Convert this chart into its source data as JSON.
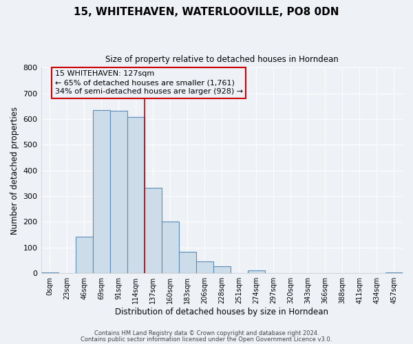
{
  "title": "15, WHITEHAVEN, WATERLOOVILLE, PO8 0DN",
  "subtitle": "Size of property relative to detached houses in Horndean",
  "xlabel": "Distribution of detached houses by size in Horndean",
  "ylabel": "Number of detached properties",
  "bar_labels": [
    "0sqm",
    "23sqm",
    "46sqm",
    "69sqm",
    "91sqm",
    "114sqm",
    "137sqm",
    "160sqm",
    "183sqm",
    "206sqm",
    "228sqm",
    "251sqm",
    "274sqm",
    "297sqm",
    "320sqm",
    "343sqm",
    "366sqm",
    "388sqm",
    "411sqm",
    "434sqm",
    "457sqm"
  ],
  "bar_values": [
    2,
    0,
    143,
    636,
    631,
    608,
    332,
    200,
    83,
    46,
    26,
    0,
    12,
    0,
    0,
    0,
    0,
    0,
    0,
    0,
    4
  ],
  "bar_color": "#ccdce8",
  "bar_edge_color": "#5b8db8",
  "vline_x": 5.5,
  "vline_color": "#cc0000",
  "ylim": [
    0,
    800
  ],
  "yticks": [
    0,
    100,
    200,
    300,
    400,
    500,
    600,
    700,
    800
  ],
  "annotation_title": "15 WHITEHAVEN: 127sqm",
  "annotation_line1": "← 65% of detached houses are smaller (1,761)",
  "annotation_line2": "34% of semi-detached houses are larger (928) →",
  "annotation_box_color": "#cc0000",
  "footer_line1": "Contains HM Land Registry data © Crown copyright and database right 2024.",
  "footer_line2": "Contains public sector information licensed under the Open Government Licence v3.0.",
  "bg_color": "#eef2f7",
  "grid_color": "#ffffff"
}
